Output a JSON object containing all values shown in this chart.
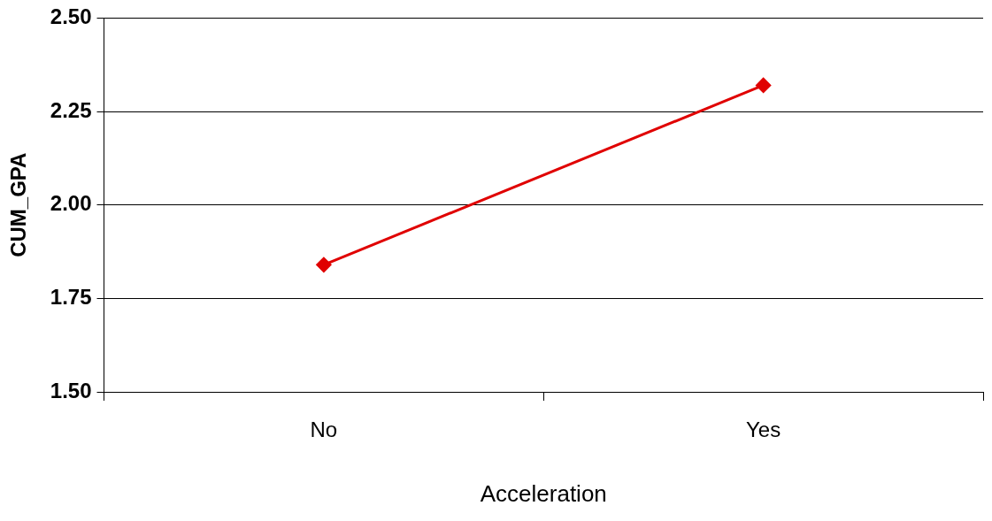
{
  "chart_data": {
    "type": "line",
    "xlabel": "Acceleration",
    "ylabel": "CUM_GPA",
    "categories": [
      "No",
      "Yes"
    ],
    "series": [
      {
        "color": "#e00000",
        "values": [
          1.84,
          2.32
        ]
      }
    ],
    "ylim": [
      1.5,
      2.5
    ],
    "yticks": [
      {
        "value": 1.5,
        "label": "1.50"
      },
      {
        "value": 1.75,
        "label": "1.75"
      },
      {
        "value": 2,
        "label": "2.00"
      },
      {
        "value": 2.25,
        "label": "2.25"
      },
      {
        "value": 2.5,
        "label": "2.50"
      }
    ],
    "grid": "y",
    "legend": false,
    "marker": "diamond",
    "line_style": "solid"
  }
}
